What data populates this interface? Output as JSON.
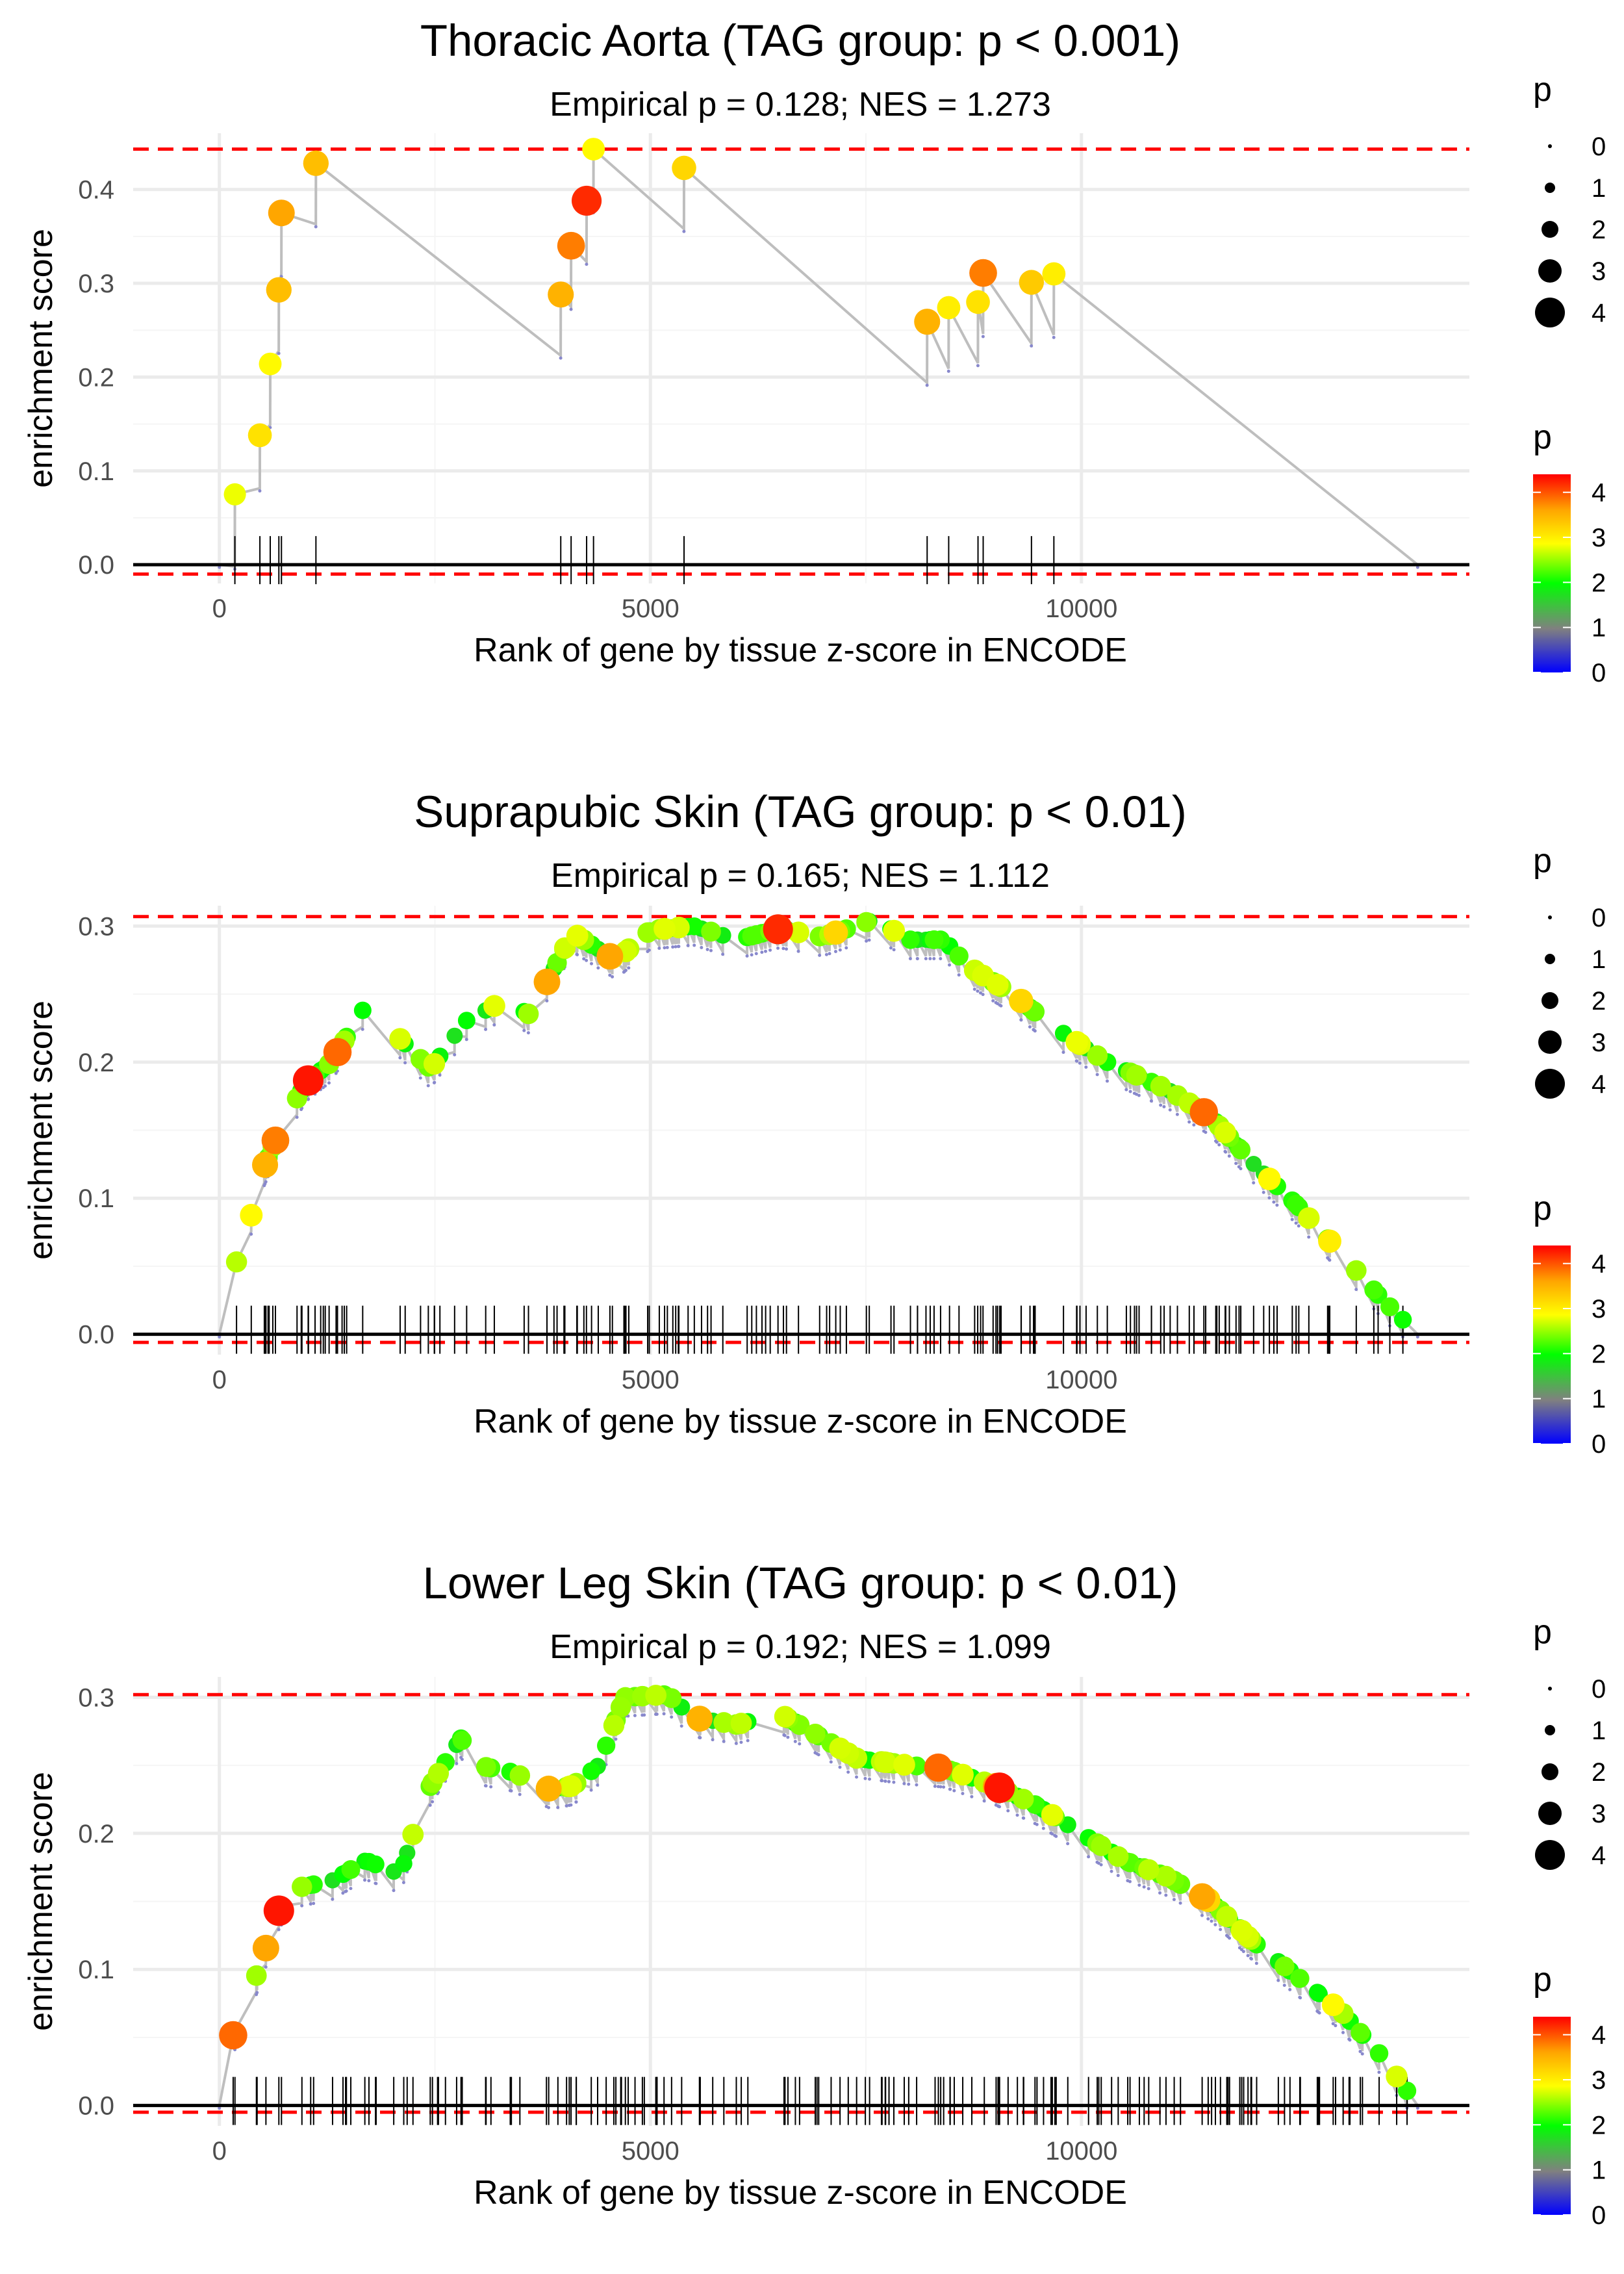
{
  "figure": {
    "colors": {
      "grid": "#ebebeb",
      "line": "#bebebe",
      "threshold": "#ff0000",
      "baseline": "#000000",
      "rug": "#000000"
    },
    "color_scale": [
      "#0000ff",
      "#808080",
      "#00ff00",
      "#ffff00",
      "#ffa500",
      "#ff0000"
    ]
  },
  "chart_data": [
    {
      "type": "line",
      "title": "Thoracic Aorta (TAG group: p < 0.001)",
      "subtitle": "Empirical p = 0.128; NES = 1.273",
      "xlabel": "Rank of gene by tissue z-score in ENCODE",
      "ylabel": "enrichment score",
      "xlim": [
        -1000,
        14500
      ],
      "ylim": [
        -0.02,
        0.46
      ],
      "x_ticks": [
        0,
        5000,
        10000
      ],
      "x_tick_labels": [
        "0",
        "5000",
        "10000"
      ],
      "y_ticks": [
        0.0,
        0.1,
        0.2,
        0.3,
        0.4
      ],
      "y_tick_labels": [
        "0.0",
        "0.1",
        "0.2",
        "0.3",
        "0.4"
      ],
      "threshold_upper": 0.443,
      "threshold_lower": -0.01,
      "end_rank": 13900,
      "hits": [
        {
          "x": 180,
          "es": 0.075,
          "p": 2.8
        },
        {
          "x": 470,
          "es": 0.138,
          "p": 3.1
        },
        {
          "x": 590,
          "es": 0.214,
          "p": 2.9
        },
        {
          "x": 690,
          "es": 0.293,
          "p": 3.4
        },
        {
          "x": 720,
          "es": 0.375,
          "p": 3.6
        },
        {
          "x": 1120,
          "es": 0.428,
          "p": 3.4
        },
        {
          "x": 3960,
          "es": 0.288,
          "p": 3.5
        },
        {
          "x": 4080,
          "es": 0.34,
          "p": 3.8
        },
        {
          "x": 4260,
          "es": 0.388,
          "p": 4.2
        },
        {
          "x": 4340,
          "es": 0.443,
          "p": 2.9
        },
        {
          "x": 5390,
          "es": 0.423,
          "p": 3.2
        },
        {
          "x": 8210,
          "es": 0.259,
          "p": 3.5
        },
        {
          "x": 8460,
          "es": 0.274,
          "p": 3.0
        },
        {
          "x": 8800,
          "es": 0.28,
          "p": 3.1
        },
        {
          "x": 8860,
          "es": 0.311,
          "p": 3.8
        },
        {
          "x": 9420,
          "es": 0.301,
          "p": 3.3
        },
        {
          "x": 9680,
          "es": 0.31,
          "p": 3.0
        }
      ]
    },
    {
      "type": "line",
      "title": "Suprapubic Skin (TAG group: p < 0.01)",
      "subtitle": "Empirical p = 0.165; NES = 1.112",
      "xlabel": "Rank of gene by tissue z-score in ENCODE",
      "ylabel": "enrichment score",
      "xlim": [
        -1000,
        14500
      ],
      "ylim": [
        -0.015,
        0.315
      ],
      "x_ticks": [
        0,
        5000,
        10000
      ],
      "x_tick_labels": [
        "0",
        "5000",
        "10000"
      ],
      "y_ticks": [
        0.0,
        0.1,
        0.2,
        0.3
      ],
      "y_tick_labels": [
        "0.0",
        "0.1",
        "0.2",
        "0.3"
      ],
      "threshold_upper": 0.307,
      "threshold_lower": -0.006,
      "end_rank": 13900,
      "hit_count": 150,
      "seed": 11,
      "profile": [
        [
          0,
          0.0
        ],
        [
          120,
          0.04
        ],
        [
          300,
          0.07
        ],
        [
          500,
          0.12
        ],
        [
          700,
          0.15
        ],
        [
          1000,
          0.185
        ],
        [
          1300,
          0.2
        ],
        [
          1700,
          0.242
        ],
        [
          2450,
          0.195
        ],
        [
          2850,
          0.23
        ],
        [
          3300,
          0.245
        ],
        [
          3600,
          0.235
        ],
        [
          4100,
          0.295
        ],
        [
          4600,
          0.275
        ],
        [
          5000,
          0.297
        ],
        [
          5500,
          0.3
        ],
        [
          6000,
          0.29
        ],
        [
          6500,
          0.298
        ],
        [
          7000,
          0.292
        ],
        [
          7600,
          0.305
        ],
        [
          8000,
          0.29
        ],
        [
          8400,
          0.29
        ],
        [
          8700,
          0.27
        ],
        [
          9200,
          0.25
        ],
        [
          9700,
          0.225
        ],
        [
          10300,
          0.2
        ],
        [
          11000,
          0.18
        ],
        [
          11500,
          0.16
        ],
        [
          12000,
          0.125
        ],
        [
          12500,
          0.095
        ],
        [
          13000,
          0.06
        ],
        [
          13500,
          0.025
        ],
        [
          13900,
          0.0
        ]
      ],
      "highlights": [
        {
          "x": 370,
          "p": 2.9
        },
        {
          "x": 530,
          "p": 3.5
        },
        {
          "x": 650,
          "p": 3.8
        },
        {
          "x": 1030,
          "p": 4.3
        },
        {
          "x": 1370,
          "p": 3.9
        },
        {
          "x": 3800,
          "p": 3.6
        },
        {
          "x": 4530,
          "p": 3.6
        },
        {
          "x": 6480,
          "p": 4.2
        },
        {
          "x": 7150,
          "p": 3.2
        },
        {
          "x": 9300,
          "p": 3.2
        },
        {
          "x": 11420,
          "p": 3.9
        },
        {
          "x": 12180,
          "p": 2.9
        },
        {
          "x": 12880,
          "p": 3.0
        }
      ]
    },
    {
      "type": "line",
      "title": "Lower Leg Skin (TAG group: p < 0.01)",
      "subtitle": "Empirical p = 0.192; NES = 1.099",
      "xlabel": "Rank of gene by tissue z-score in ENCODE",
      "ylabel": "enrichment score",
      "xlim": [
        -1000,
        14500
      ],
      "ylim": [
        -0.015,
        0.315
      ],
      "x_ticks": [
        0,
        5000,
        10000
      ],
      "x_tick_labels": [
        "0",
        "5000",
        "10000"
      ],
      "y_ticks": [
        0.0,
        0.1,
        0.2,
        0.3
      ],
      "y_tick_labels": [
        "0.0",
        "0.1",
        "0.2",
        "0.3"
      ],
      "threshold_upper": 0.302,
      "threshold_lower": -0.005,
      "end_rank": 13900,
      "hit_count": 160,
      "seed": 23,
      "profile": [
        [
          0,
          0.0
        ],
        [
          150,
          0.05
        ],
        [
          400,
          0.09
        ],
        [
          700,
          0.145
        ],
        [
          900,
          0.16
        ],
        [
          1300,
          0.165
        ],
        [
          1700,
          0.18
        ],
        [
          2100,
          0.17
        ],
        [
          2400,
          0.23
        ],
        [
          2800,
          0.27
        ],
        [
          3000,
          0.25
        ],
        [
          3400,
          0.245
        ],
        [
          3850,
          0.232
        ],
        [
          4100,
          0.235
        ],
        [
          4400,
          0.25
        ],
        [
          4700,
          0.3
        ],
        [
          5200,
          0.302
        ],
        [
          5500,
          0.285
        ],
        [
          6000,
          0.28
        ],
        [
          6500,
          0.288
        ],
        [
          7000,
          0.27
        ],
        [
          7400,
          0.255
        ],
        [
          8000,
          0.25
        ],
        [
          8400,
          0.248
        ],
        [
          9000,
          0.235
        ],
        [
          9500,
          0.22
        ],
        [
          10000,
          0.2
        ],
        [
          10500,
          0.18
        ],
        [
          11000,
          0.168
        ],
        [
          11500,
          0.15
        ],
        [
          12000,
          0.12
        ],
        [
          12500,
          0.095
        ],
        [
          13000,
          0.07
        ],
        [
          13500,
          0.035
        ],
        [
          13900,
          0.0
        ]
      ],
      "highlights": [
        {
          "x": 160,
          "p": 3.9
        },
        {
          "x": 540,
          "p": 3.6
        },
        {
          "x": 690,
          "p": 4.3
        },
        {
          "x": 3820,
          "p": 3.5
        },
        {
          "x": 5570,
          "p": 3.5
        },
        {
          "x": 8340,
          "p": 3.9
        },
        {
          "x": 9010,
          "p": 3.6
        },
        {
          "x": 9050,
          "p": 4.3
        },
        {
          "x": 11400,
          "p": 3.6
        },
        {
          "x": 11470,
          "p": 3.2
        },
        {
          "x": 12920,
          "p": 2.9
        }
      ]
    }
  ],
  "legends": [
    {
      "size_title": "p",
      "size_labels": [
        "0",
        "1",
        "2",
        "3",
        "4"
      ],
      "color_title": "p",
      "color_labels": [
        "4",
        "3",
        "2",
        "1",
        "0"
      ]
    },
    {
      "size_title": "p",
      "size_labels": [
        "0",
        "1",
        "2",
        "3",
        "4"
      ],
      "color_title": "p",
      "color_labels": [
        "4",
        "3",
        "2",
        "1",
        "0"
      ]
    },
    {
      "size_title": "p",
      "size_labels": [
        "0",
        "1",
        "2",
        "3",
        "4"
      ],
      "color_title": "p",
      "color_labels": [
        "4",
        "3",
        "2",
        "1",
        "0"
      ]
    }
  ]
}
